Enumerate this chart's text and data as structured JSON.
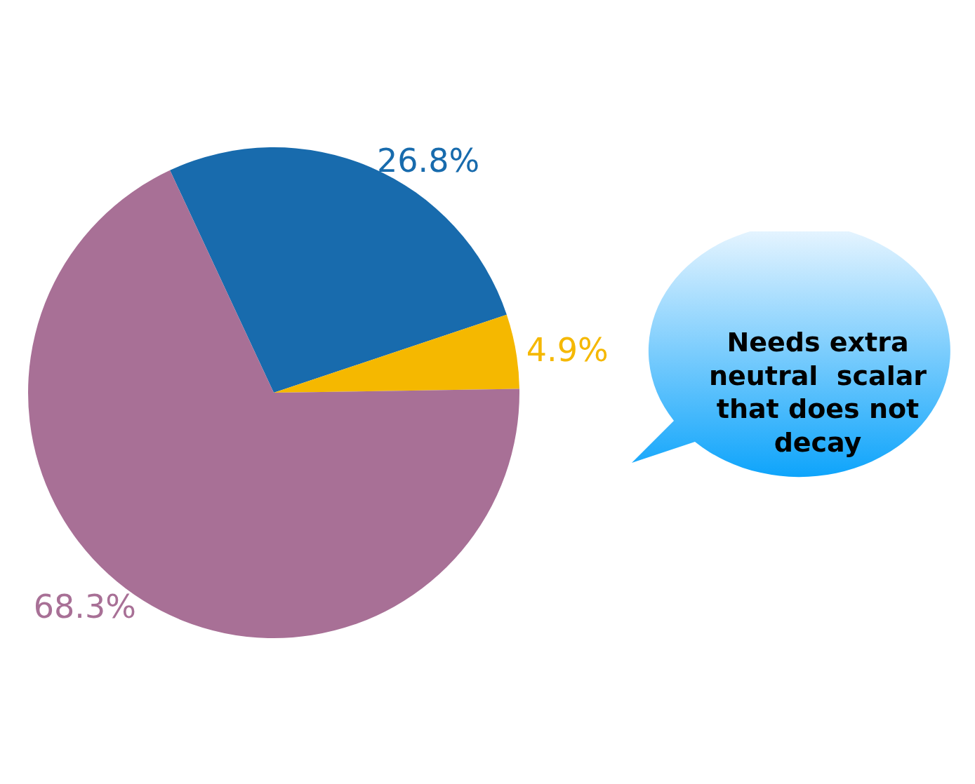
{
  "chart_data": {
    "type": "pie",
    "categories": [
      null,
      null,
      null
    ],
    "values": [
      26.8,
      4.9,
      68.3
    ],
    "colors": [
      "#186bad",
      "#f5b800",
      "#a87096"
    ],
    "value_labels": [
      "26.8%",
      "4.9%",
      "68.3%"
    ],
    "annotations": [
      "Needs extra neutral  scalar that does not decay"
    ]
  }
}
